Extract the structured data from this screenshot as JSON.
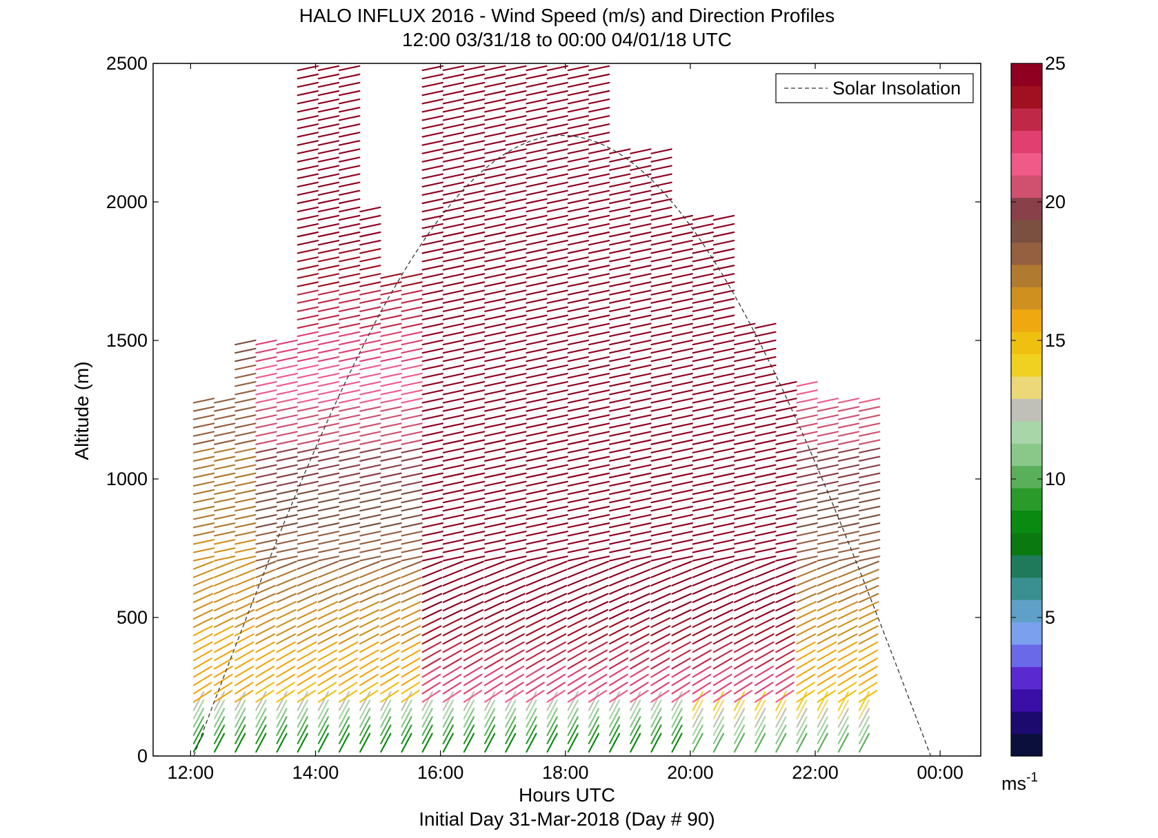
{
  "chart_data": {
    "type": "quiver",
    "title": "HALO INFLUX 2016 - Wind Speed (m/s) and Direction Profiles",
    "subtitle": "12:00 03/31/18 to 00:00 04/01/18  UTC",
    "xlabel": "Hours UTC",
    "xlabel2": "Initial Day 31-Mar-2018 (Day # 90)",
    "ylabel": "Altitude (m)",
    "xlim": [
      11.4,
      24.65
    ],
    "ylim": [
      0,
      2500
    ],
    "x_ticks": [
      12,
      14,
      16,
      18,
      20,
      22,
      24
    ],
    "x_tick_labels": [
      "12:00",
      "14:00",
      "16:00",
      "18:00",
      "20:00",
      "22:00",
      "00:00"
    ],
    "y_ticks": [
      0,
      500,
      1000,
      1500,
      2000,
      2500
    ],
    "y_tick_labels": [
      "0",
      "500",
      "1000",
      "1500",
      "2000",
      "2500"
    ],
    "legend": {
      "label": "Solar Insolation",
      "position": "top-right"
    },
    "solar_insolation_line": {
      "start_hour": 12.05,
      "end_hour": 23.85,
      "peak_hour": 18.05,
      "peak_altitude_m": 2240
    },
    "profiles": {
      "start_hour": 12.05,
      "end_hour": 22.8,
      "interval_hours": 0.333,
      "height_step_m": 30,
      "vector_direction": "westerly (arrows point east, slightly upward)"
    },
    "colorbar": {
      "ticks": [
        5,
        10,
        15,
        20,
        25
      ],
      "min": 0,
      "max": 25,
      "unit_label": "ms",
      "unit_exponent": "-1",
      "colors": [
        "#0a0f3c",
        "#1c0a6e",
        "#3a0fa8",
        "#5a2ad0",
        "#6a6ae8",
        "#7aa0ee",
        "#5fa0c8",
        "#3a9090",
        "#1e7a5a",
        "#0a7a10",
        "#0a8a10",
        "#2a9a2a",
        "#5ab05a",
        "#8ac88a",
        "#a8d6a8",
        "#c0c0b8",
        "#ecd878",
        "#f0d020",
        "#f0c010",
        "#f0a810",
        "#d09020",
        "#b07a30",
        "#946040",
        "#7a5040",
        "#8a4048",
        "#d05070",
        "#f05a88",
        "#e04070",
        "#c02848",
        "#a01020",
        "#900020"
      ]
    }
  }
}
